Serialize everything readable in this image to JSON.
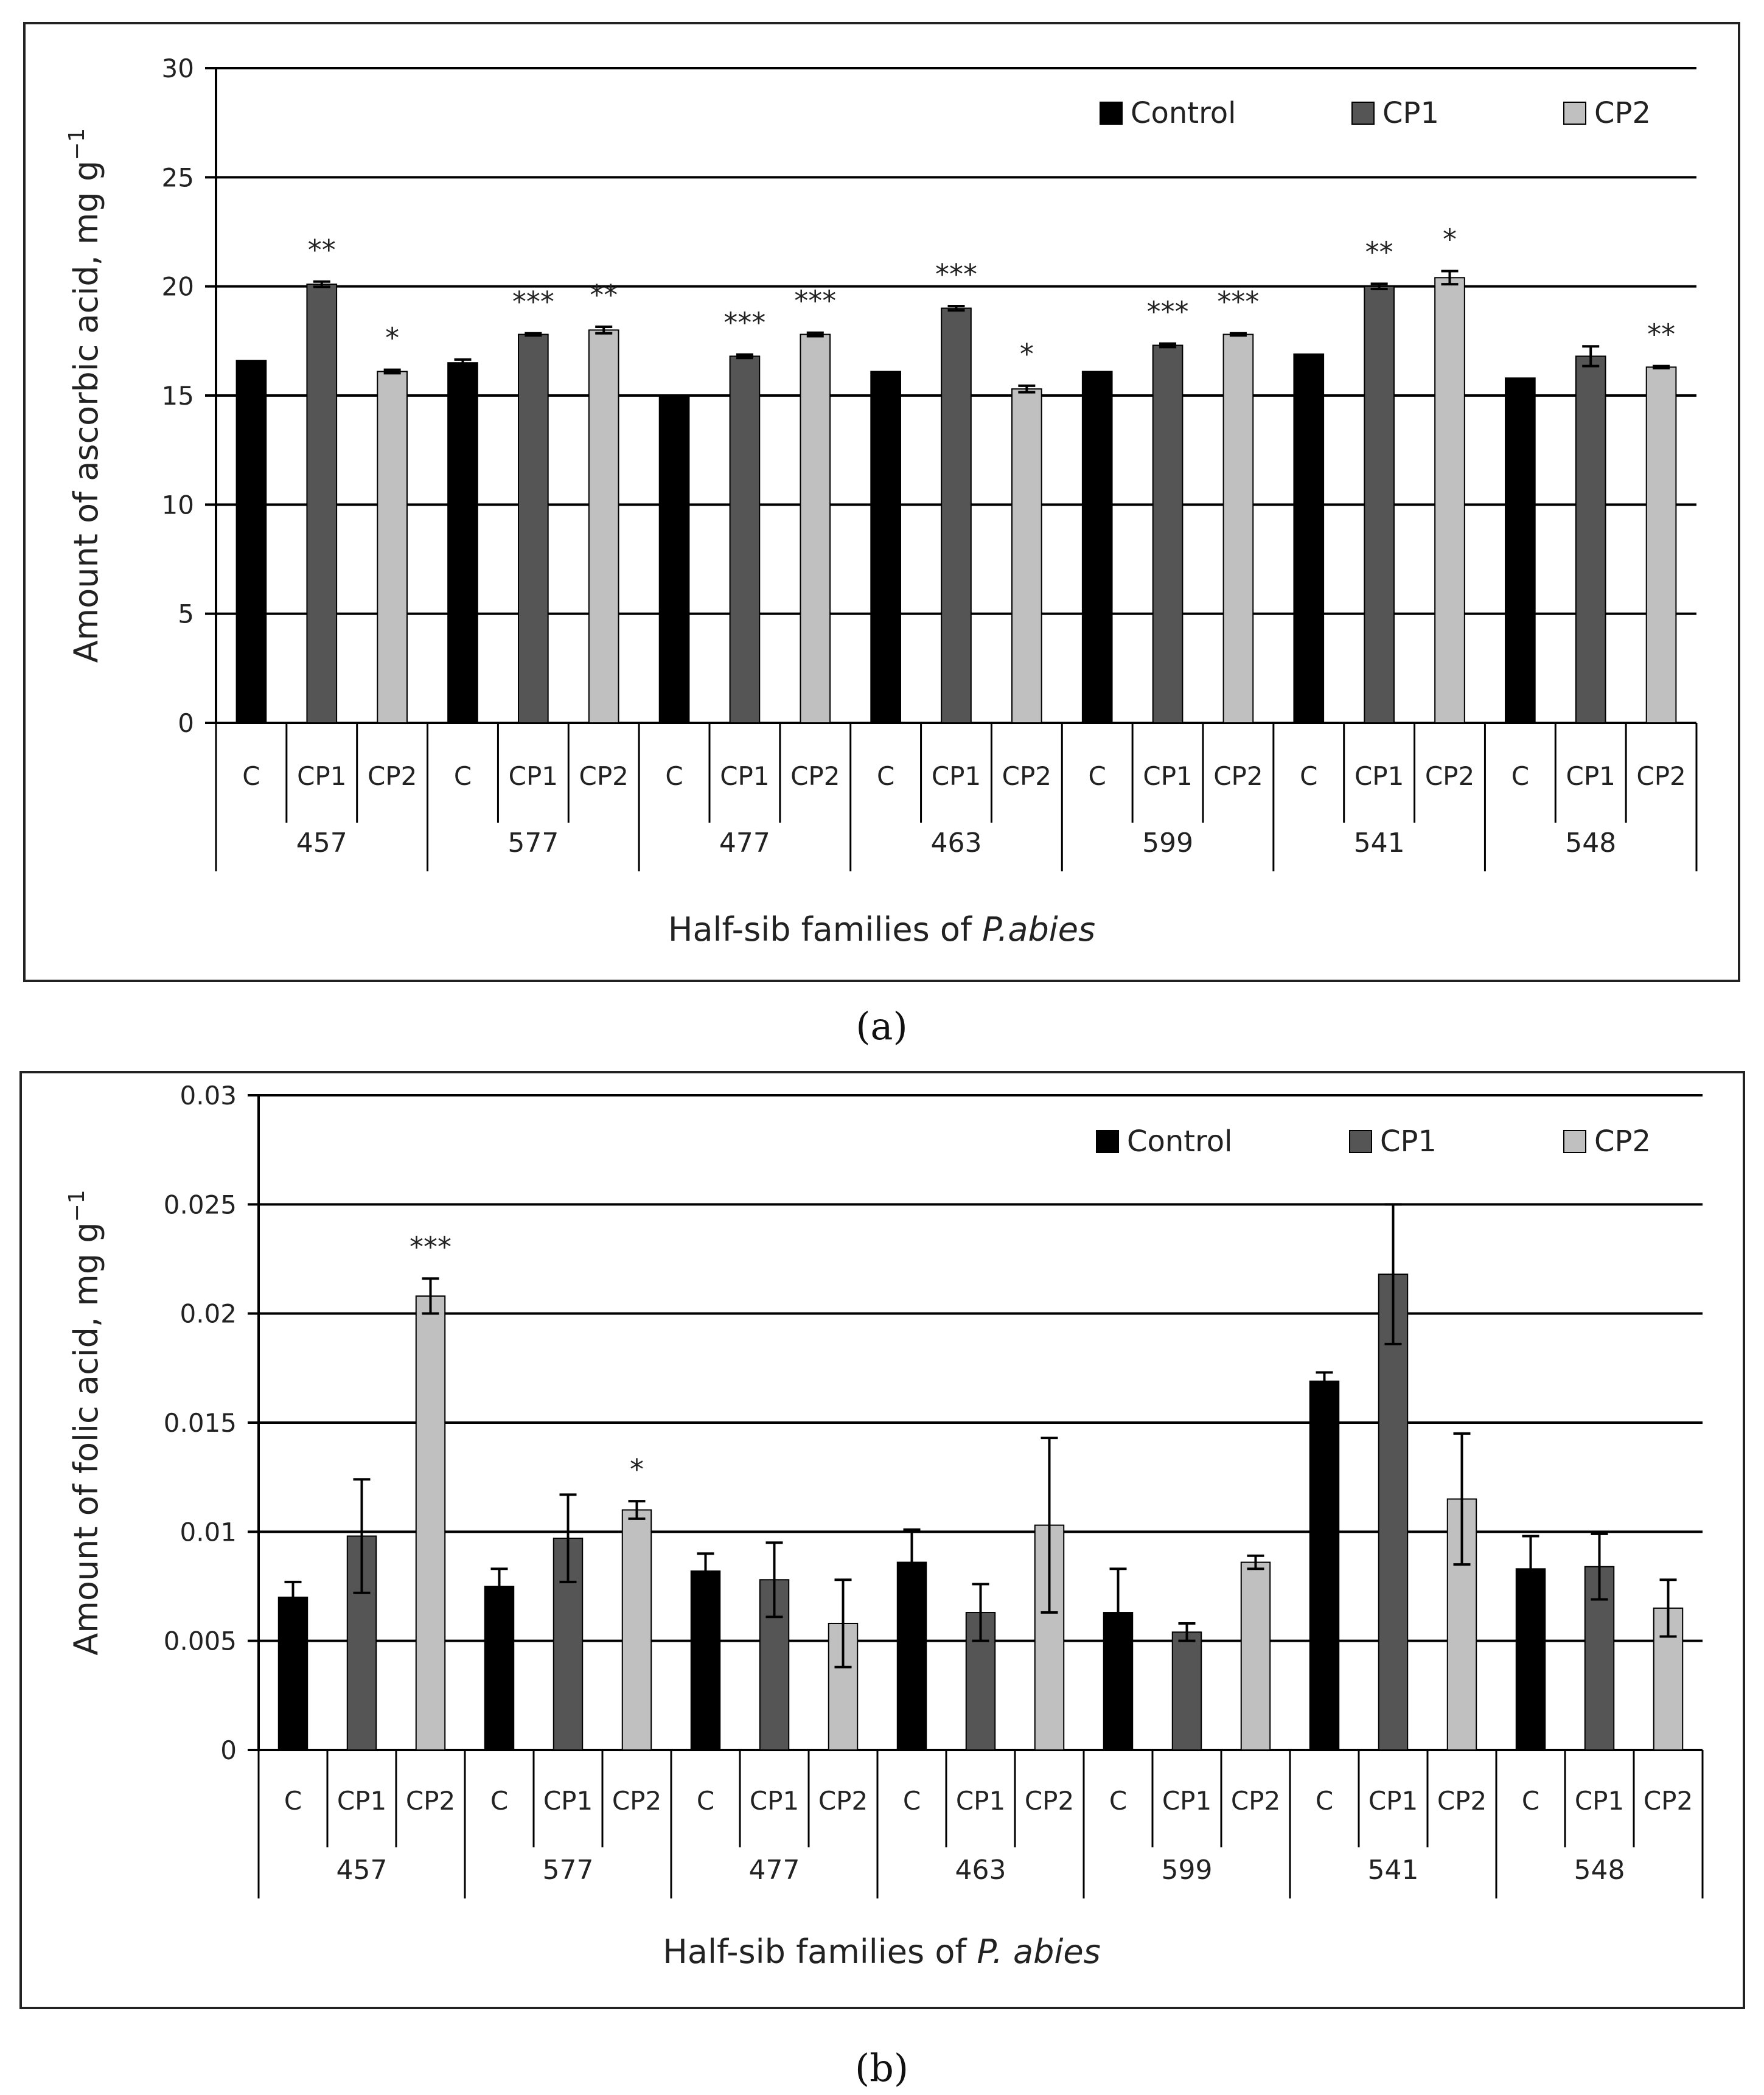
{
  "chart_data": [
    {
      "panel": "(a)",
      "type": "bar",
      "ylabel": "Amount of ascorbic acid, mg g",
      "ylabel_sup": "−1",
      "xlabel_prefix": "Half-sib families of ",
      "xlabel_species": "P.abies",
      "ylim": [
        0,
        30
      ],
      "yticks": [
        0,
        5,
        10,
        15,
        20,
        25,
        30
      ],
      "ytick_labels": [
        "0",
        "5",
        "10",
        "15",
        "20",
        "25",
        "30"
      ],
      "families": [
        "457",
        "577",
        "477",
        "463",
        "599",
        "541",
        "548"
      ],
      "category_labels": [
        "C",
        "CP1",
        "CP2"
      ],
      "legend": [
        "Control",
        "CP1",
        "CP2"
      ],
      "colors": [
        "#000000",
        "#555555",
        "#c0c0c0"
      ],
      "series": [
        {
          "name": "Control",
          "values": [
            16.6,
            16.5,
            15.0,
            16.1,
            16.1,
            16.9,
            15.8
          ],
          "errors": [
            0,
            0.15,
            0,
            0,
            0,
            0,
            0
          ],
          "sig": [
            "",
            "",
            "",
            "",
            "",
            "",
            ""
          ]
        },
        {
          "name": "CP1",
          "values": [
            20.1,
            17.8,
            16.8,
            19.0,
            17.3,
            20.0,
            16.8
          ],
          "errors": [
            0.12,
            0.05,
            0.08,
            0.1,
            0.08,
            0.12,
            0.45
          ],
          "sig": [
            "**",
            "***",
            "***",
            "***",
            "***",
            "**",
            ""
          ]
        },
        {
          "name": "CP2",
          "values": [
            16.1,
            18.0,
            17.8,
            15.3,
            17.8,
            20.4,
            16.3
          ],
          "errors": [
            0.08,
            0.15,
            0.08,
            0.15,
            0.05,
            0.3,
            0.05
          ],
          "sig": [
            "*",
            "**",
            "***",
            "*",
            "***",
            "*",
            "**"
          ]
        }
      ]
    },
    {
      "panel": "(b)",
      "type": "bar",
      "ylabel": "Amount of  folic acid, mg g",
      "ylabel_sup": "−1",
      "xlabel_prefix": "Half-sib families of ",
      "xlabel_species": "P. abies",
      "ylim": [
        0,
        0.03
      ],
      "yticks": [
        0,
        0.005,
        0.01,
        0.015,
        0.02,
        0.025,
        0.03
      ],
      "ytick_labels": [
        "0",
        "0.005",
        "0.01",
        "0.015",
        "0.02",
        "0.025",
        "0.03"
      ],
      "families": [
        "457",
        "577",
        "477",
        "463",
        "599",
        "541",
        "548"
      ],
      "category_labels": [
        "C",
        "CP1",
        "CP2"
      ],
      "legend": [
        "Control",
        "CP1",
        "CP2"
      ],
      "colors": [
        "#000000",
        "#555555",
        "#c0c0c0"
      ],
      "series": [
        {
          "name": "Control",
          "values": [
            0.007,
            0.0075,
            0.0082,
            0.0086,
            0.0063,
            0.0169,
            0.0083
          ],
          "errors": [
            0.0007,
            0.0008,
            0.0008,
            0.0015,
            0.002,
            0.0004,
            0.0015
          ],
          "sig": [
            "",
            "",
            "",
            "",
            "",
            "",
            ""
          ]
        },
        {
          "name": "CP1",
          "values": [
            0.0098,
            0.0097,
            0.0078,
            0.0063,
            0.0054,
            0.0218,
            0.0084
          ],
          "errors": [
            0.0026,
            0.002,
            0.0017,
            0.0013,
            0.0004,
            0.0032,
            0.0015
          ],
          "sig": [
            "",
            "",
            "",
            "",
            "",
            "",
            ""
          ]
        },
        {
          "name": "CP2",
          "values": [
            0.0208,
            0.011,
            0.0058,
            0.0103,
            0.0086,
            0.0115,
            0.0065
          ],
          "errors": [
            0.0008,
            0.0004,
            0.002,
            0.004,
            0.0003,
            0.003,
            0.0013
          ],
          "sig": [
            "***",
            "*",
            "",
            "",
            "",
            "",
            ""
          ]
        }
      ]
    }
  ]
}
